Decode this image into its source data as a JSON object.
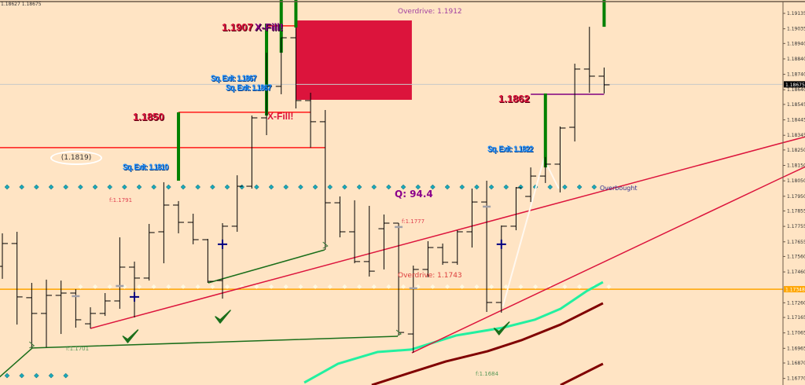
{
  "header": {
    "ohlc_readout": "1.18627 1.18675"
  },
  "colors": {
    "background": "#ffe4c4",
    "bar": "#000000",
    "signal_bar": "#008000",
    "trendline": "#dc143c",
    "box": "#dc143c",
    "level_purple": "#800080",
    "orange_level": "#ffa500",
    "aqua_curve": "#22f0a0",
    "maroon_curve": "#800000",
    "green_line": "#1a6e1a",
    "white_line": "#fff8f0",
    "dots_cyan": "#1aa8b8",
    "dots_light": "#fff8e0",
    "cross_marker": "#000080",
    "dash_marker": "#a0a0a8",
    "check": "#1a6e1a"
  },
  "labels": {
    "level_1850": "1.1850",
    "level_1907": "1.1907",
    "level_1862": "1.1862",
    "xfill_top": "X-Fill!",
    "xfill_mid": "X-Fill!",
    "sq_exit_1": "Sq. Exit: 1.1867",
    "sq_exit_2": "Sq. Exit: 1.1867",
    "sq_exit_3": "Sq. Exit: 1.1810",
    "sq_exit_4": "Sq. Exit: 1.1822",
    "ellipse_value": "(1.1819)",
    "overdrive_top": "Overdrive: 1.1912",
    "overdrive_bottom": "Overdrive: 1.1743",
    "q_value": "Q: 94.4",
    "overbought": "Overbought",
    "f_1791": "f:1.1791",
    "f_1777": "f:1.1777",
    "f_1701": "f:1.1701",
    "f_1684": "f:1.1684"
  },
  "chart_data": {
    "type": "ohlc",
    "grid": false,
    "y_axis": {
      "position": "right",
      "ticks": [
        "1.19135",
        "1.19035",
        "1.18940",
        "1.18840",
        "1.18740",
        "1.18640",
        "1.18545",
        "1.18445",
        "1.18345",
        "1.18250",
        "1.18150",
        "1.18050",
        "1.17950",
        "1.17855",
        "1.17755",
        "1.17655",
        "1.17560",
        "1.17460",
        "1.17260",
        "1.17165",
        "1.17065",
        "1.16965",
        "1.16870",
        "1.16770"
      ],
      "current_price": "1.18675",
      "orange_level": "1.17348"
    },
    "bars_ohlc": [
      [
        1.17496,
        1.1771,
        1.17415,
        1.17644
      ],
      [
        1.17644,
        1.1772,
        1.17119,
        1.17298
      ],
      [
        1.17293,
        1.17389,
        1.16967,
        1.17191
      ],
      [
        1.17191,
        1.1741,
        1.16972,
        1.17308
      ],
      [
        1.17308,
        1.17404,
        1.17058,
        1.17323
      ],
      [
        1.17323,
        1.17348,
        1.17099,
        1.1715
      ],
      [
        1.17124,
        1.17231,
        1.17094,
        1.17191
      ],
      [
        1.17191,
        1.17323,
        1.17175,
        1.17272
      ],
      [
        1.17272,
        1.17684,
        1.17221,
        1.17491
      ],
      [
        1.17491,
        1.17527,
        1.17165,
        1.1742
      ],
      [
        1.1742,
        1.17771,
        1.17404,
        1.17715
      ],
      [
        1.1772,
        1.18041,
        1.17516,
        1.17893
      ],
      [
        1.17893,
        1.17919,
        1.1771,
        1.17781
      ],
      [
        1.17781,
        1.17837,
        1.17639,
        1.17669
      ],
      [
        1.17669,
        1.17674,
        1.17389,
        1.17399
      ],
      [
        1.17404,
        1.17776,
        1.17287,
        1.17756
      ],
      [
        1.17756,
        1.18086,
        1.1772,
        1.18015
      ],
      [
        1.18015,
        1.18473,
        1.18,
        1.18458
      ],
      [
        1.18458,
        1.1888,
        1.18346,
        1.18662
      ],
      [
        1.18662,
        1.18977,
        1.18611,
        1.18977
      ],
      [
        1.18977,
        1.19043,
        1.18519,
        1.1857
      ],
      [
        1.1857,
        1.18621,
        1.18265,
        1.18433
      ],
      [
        1.18433,
        1.18509,
        1.17603,
        1.17908
      ],
      [
        1.17908,
        1.17949,
        1.17684,
        1.1772
      ],
      [
        1.1772,
        1.17924,
        1.17516,
        1.17527
      ],
      [
        1.17527,
        1.17888,
        1.1743,
        1.17465
      ],
      [
        1.1774,
        1.17832,
        1.17476,
        1.17776
      ],
      [
        1.17776,
        1.17776,
        1.17048,
        1.17068
      ],
      [
        1.17058,
        1.17501,
        1.16936,
        1.17476
      ],
      [
        1.17476,
        1.17659,
        1.17425,
        1.17618
      ],
      [
        1.17618,
        1.17644,
        1.17506,
        1.17522
      ],
      [
        1.17522,
        1.1773,
        1.17506,
        1.1772
      ],
      [
        1.1772,
        1.18,
        1.17618,
        1.17913
      ],
      [
        1.17913,
        1.18051,
        1.17201,
        1.17262
      ],
      [
        1.17262,
        1.17761,
        1.17196,
        1.17756
      ],
      [
        1.17756,
        1.1801,
        1.1773,
        1.18005
      ],
      [
        1.17949,
        1.18137,
        1.17913,
        1.18081
      ],
      [
        1.18081,
        1.18204,
        1.18036,
        1.18158
      ],
      [
        1.18158,
        1.18402,
        1.17975,
        1.18392
      ],
      [
        1.18397,
        1.18809,
        1.18305,
        1.18774
      ],
      [
        1.18774,
        1.19048,
        1.18621,
        1.18728
      ],
      [
        1.18728,
        1.18784,
        1.18616,
        1.18672
      ]
    ],
    "signal_bars": [
      {
        "bar": 12,
        "from": 1.18051,
        "to": 1.18494
      },
      {
        "bar": 18,
        "from": 1.18473,
        "to": 1.19069
      },
      {
        "bar": 19,
        "from": 1.1888,
        "to": 1.19222
      },
      {
        "bar": 20,
        "from": 1.19043,
        "to": 1.19222
      },
      {
        "bar": 37,
        "from": 1.18137,
        "to": 1.18616
      },
      {
        "bar": 41,
        "from": 1.19048,
        "to": 1.19222
      }
    ],
    "levels": [
      {
        "name": "level-1850",
        "color": "#ff1a1a",
        "price": 1.18494,
        "from": 12,
        "to": 21
      },
      {
        "name": "level-1819",
        "color": "#ff1a1a",
        "price": 1.18265,
        "from": -0.2,
        "to": 22
      },
      {
        "name": "level-1907",
        "color": "#ff1a1a",
        "price": 1.19054,
        "from": 18,
        "to": 20
      },
      {
        "name": "level-1862",
        "color": "#800080",
        "price": 1.18611,
        "from": 36,
        "to": 41
      }
    ],
    "box": {
      "from": 20,
      "to": 27.9,
      "top": 1.19089,
      "bottom": 1.18575
    },
    "trendlines": [
      {
        "name": "red-trendline-upper",
        "color": "#dc143c",
        "points": [
          [
            6,
            1.17094
          ],
          [
            52.9,
            1.1829
          ],
          [
            54.7,
            1.18335
          ]
        ]
      },
      {
        "name": "red-trendline-lower",
        "color": "#dc143c",
        "points": [
          [
            27.9,
            1.16936
          ],
          [
            52.9,
            1.18061
          ],
          [
            54.7,
            1.18141
          ]
        ]
      },
      {
        "name": "green-line-base",
        "color": "#1a6e1a",
        "points": [
          [
            -0.2,
            1.16778
          ],
          [
            2.04,
            1.16967
          ],
          [
            26.94,
            1.17043
          ]
        ]
      },
      {
        "name": "green-line-upper",
        "color": "#1a6e1a",
        "points": [
          [
            14.03,
            1.17389
          ],
          [
            21.96,
            1.17603
          ]
        ]
      },
      {
        "name": "white-line",
        "color": "#fff8f0",
        "points": [
          [
            34.1,
            1.17236
          ],
          [
            36.9,
            1.18193
          ],
          [
            37.9,
            1.18
          ]
        ]
      }
    ],
    "curves": [
      {
        "name": "aqua-curve",
        "color": "#22f0a0",
        "points": [
          [
            20.57,
            1.16743
          ],
          [
            22.87,
            1.16865
          ],
          [
            25.55,
            1.16941
          ],
          [
            27.85,
            1.16957
          ],
          [
            30.9,
            1.17048
          ],
          [
            34.12,
            1.17099
          ],
          [
            36.26,
            1.1715
          ],
          [
            38.03,
            1.17221
          ],
          [
            39.85,
            1.17338
          ],
          [
            40.92,
            1.17394
          ]
        ]
      },
      {
        "name": "maroon-curve",
        "color": "#800000",
        "points": [
          [
            25.17,
            1.16727
          ],
          [
            27.69,
            1.16804
          ],
          [
            30.21,
            1.1688
          ],
          [
            33.05,
            1.16946
          ],
          [
            35.35,
            1.17017
          ],
          [
            38.03,
            1.17119
          ],
          [
            40.92,
            1.17257
          ]
        ]
      },
      {
        "name": "maroon-curve-lower",
        "color": "#800000",
        "points": [
          [
            38.03,
            1.16727
          ],
          [
            40.92,
            1.16865
          ]
        ]
      }
    ],
    "dot_rows": [
      {
        "name": "overbought-dots",
        "color": "#1aa8b8",
        "price": 1.1801,
        "from": 0,
        "to": 40
      },
      {
        "name": "oversold-dots",
        "color": "#1aa8b8",
        "price": 1.16788,
        "from": 0,
        "to": 4
      },
      {
        "name": "light-dots",
        "color": "#fff8e0",
        "price": 1.17364,
        "from": 5,
        "to": 41
      }
    ],
    "cross_markers": [
      [
        9,
        1.17298
      ],
      [
        15,
        1.17639
      ],
      [
        34,
        1.17639
      ]
    ],
    "dash_markers": [
      [
        5,
        1.17303
      ],
      [
        8,
        1.17369
      ],
      [
        27,
        1.17751
      ],
      [
        28,
        1.17354
      ],
      [
        33,
        1.17883
      ]
    ],
    "checkmarks": [
      [
        8.7,
        1.17033
      ],
      [
        15,
        1.1716
      ],
      [
        34,
        1.17084
      ]
    ],
    "x_marks": [
      [
        2,
        1.16982
      ],
      [
        22,
        1.17628
      ],
      [
        27,
        1.17058
      ]
    ]
  }
}
